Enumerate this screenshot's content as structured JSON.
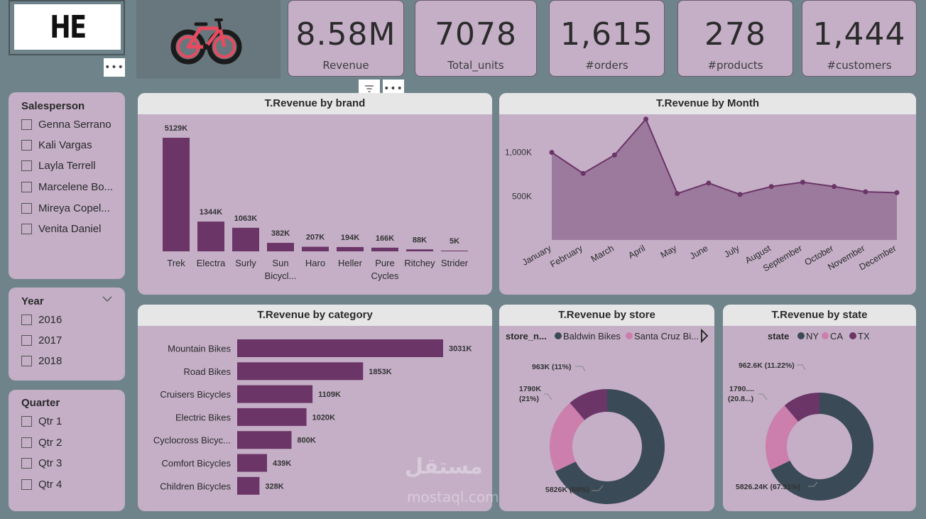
{
  "logo": {
    "text": "HE"
  },
  "kpis": [
    {
      "value": "8.58M",
      "label": "Revenue"
    },
    {
      "value": "7078",
      "label": "Total_units"
    },
    {
      "value": "1,615",
      "label": "#orders"
    },
    {
      "value": "278",
      "label": "#products"
    },
    {
      "value": "1,444",
      "label": "#customers"
    }
  ],
  "slicers": {
    "salesperson": {
      "title": "Salesperson",
      "items": [
        "Genna Serrano",
        "Kali Vargas",
        "Layla Terrell",
        "Marcelene Bo...",
        "Mireya Copel...",
        "Venita Daniel"
      ]
    },
    "year": {
      "title": "Year",
      "items": [
        "2016",
        "2017",
        "2018"
      ]
    },
    "quarter": {
      "title": "Quarter",
      "items": [
        "Qtr 1",
        "Qtr 2",
        "Qtr 3",
        "Qtr 4"
      ]
    }
  },
  "colors": {
    "accent": "#6b3567",
    "area": "#9c7a9d",
    "donut_dark": "#3a4a56",
    "donut_pink": "#cc7fac",
    "donut_purple": "#6b3567"
  },
  "chart_data": [
    {
      "type": "bar",
      "title": "T.Revenue by brand",
      "categories": [
        "Trek",
        "Electra",
        "Surly",
        "Sun Bicycl...",
        "Haro",
        "Heller",
        "Pure Cycles",
        "Ritchey",
        "Strider"
      ],
      "values": [
        5129,
        1344,
        1063,
        382,
        207,
        194,
        166,
        88,
        5
      ],
      "data_labels": [
        "5129K",
        "1344K",
        "1063K",
        "382K",
        "207K",
        "194K",
        "166K",
        "88K",
        "5K"
      ]
    },
    {
      "type": "area",
      "title": "T.Revenue by Month",
      "categories": [
        "January",
        "February",
        "March",
        "April",
        "May",
        "June",
        "July",
        "August",
        "September",
        "October",
        "November",
        "December"
      ],
      "values": [
        1000,
        760,
        970,
        1380,
        530,
        650,
        520,
        610,
        660,
        610,
        550,
        540
      ],
      "y_ticks": [
        "1,000K",
        "500K"
      ],
      "ylim": [
        0,
        1500
      ]
    },
    {
      "type": "bar",
      "orientation": "horizontal",
      "title": "T.Revenue by category",
      "categories": [
        "Mountain Bikes",
        "Road Bikes",
        "Cruisers Bicycles",
        "Electric Bikes",
        "Cyclocross Bicyc...",
        "Comfort Bicycles",
        "Children Bicycles"
      ],
      "values": [
        3031,
        1853,
        1109,
        1020,
        800,
        439,
        328
      ],
      "data_labels": [
        "3031K",
        "1853K",
        "1109K",
        "1020K",
        "800K",
        "439K",
        "328K"
      ]
    },
    {
      "type": "pie",
      "title": "T.Revenue by store",
      "legend_title": "store_n...",
      "legend": [
        "Baldwin Bikes",
        "Santa Cruz Bi..."
      ],
      "values": [
        5826,
        1790,
        963
      ],
      "labels": [
        "5826K (68%)",
        "1790K (21%)",
        "963K (11%)"
      ]
    },
    {
      "type": "pie",
      "title": "T.Revenue by state",
      "legend_title": "state",
      "legend": [
        "NY",
        "CA",
        "TX"
      ],
      "values": [
        5826.24,
        1790,
        962.6
      ],
      "labels": [
        "5826.24K (67.91%)",
        "1790.... (20.8...)",
        "962.6K (11.22%)"
      ]
    }
  ],
  "watermark": {
    "text1": "مستقل",
    "text2": "mostaql.com"
  }
}
